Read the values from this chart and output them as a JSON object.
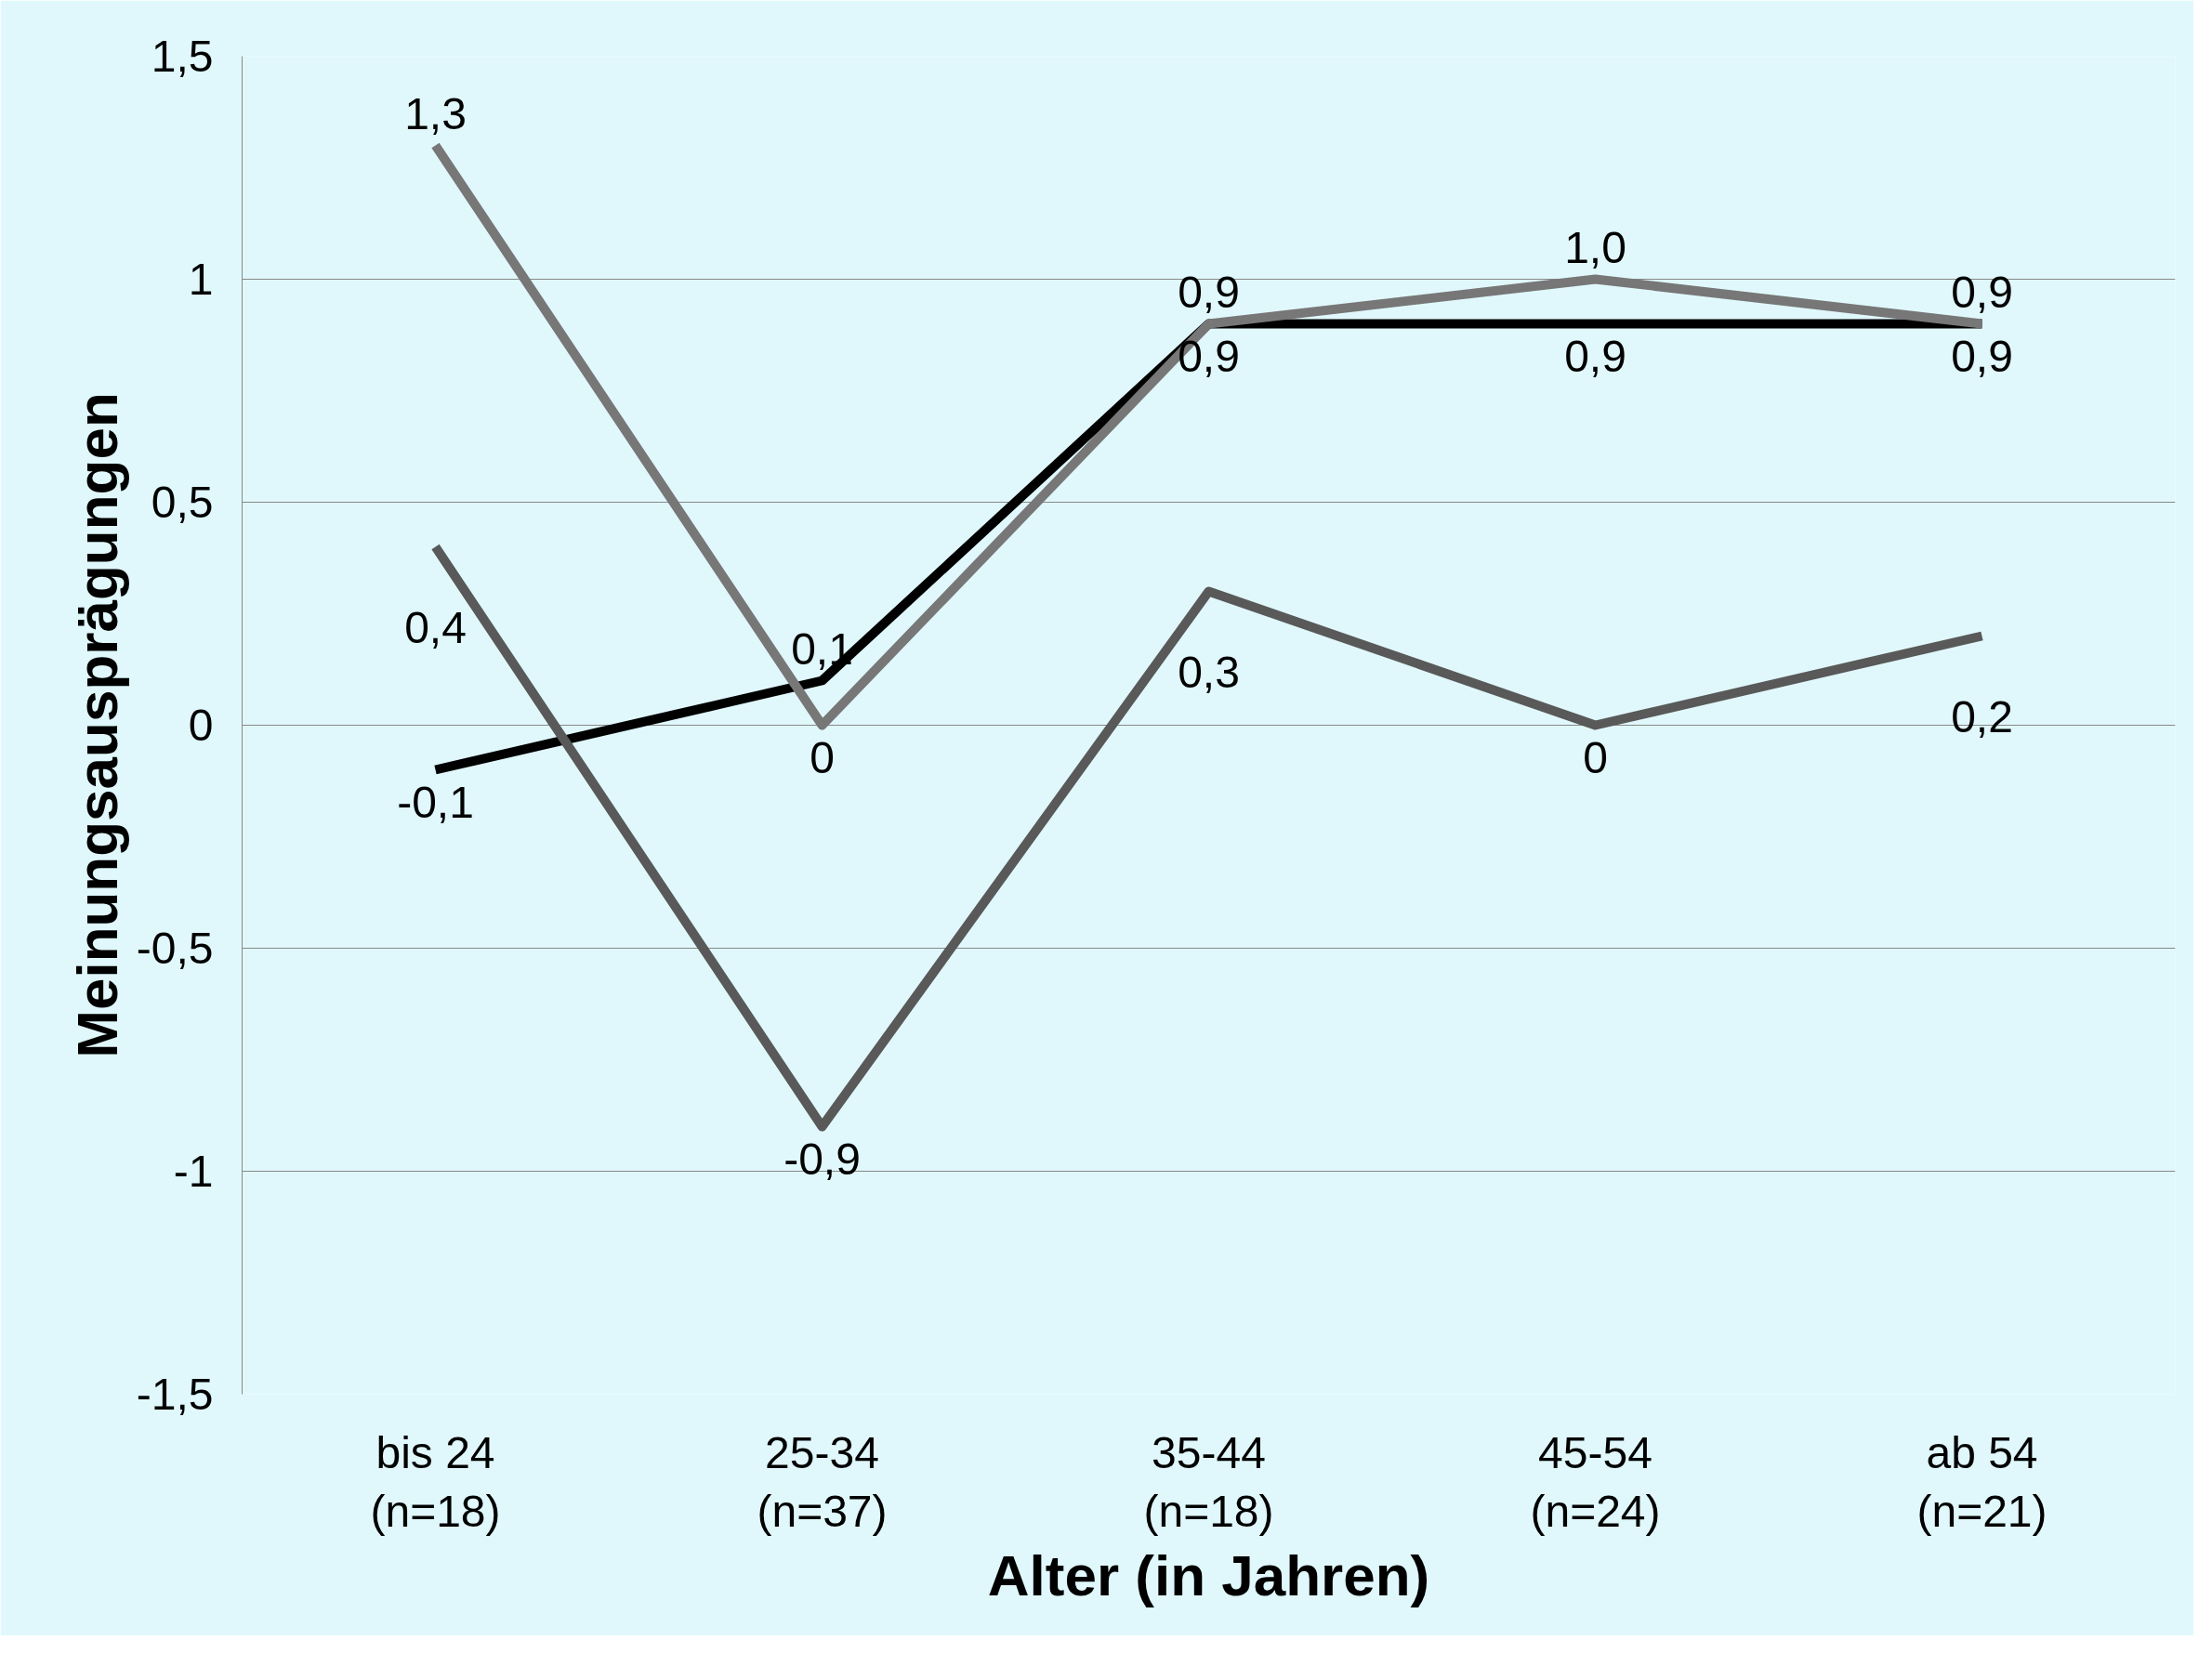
{
  "chart_data": {
    "type": "line",
    "xlabel": "Alter (in Jahren)",
    "ylabel": "Meinungsausprägungen",
    "categories": [
      "bis 24\n(n=18)",
      "25-34\n(n=37)",
      "35-44\n(n=18)",
      "45-54\n(n=24)",
      "ab 54\n(n=21)"
    ],
    "series": [
      {
        "color": "#000000",
        "values": [
          -0.1,
          0.1,
          0.9,
          0.9,
          0.9
        ],
        "value_labels": [
          "-0,1",
          "0,1",
          "0,9",
          "0,9",
          "0,9"
        ]
      },
      {
        "color": "#777777",
        "values": [
          1.3,
          0,
          0.9,
          1.0,
          0.9
        ],
        "value_labels": [
          "1,3",
          "0",
          "0,9",
          "1,0",
          "0,9"
        ]
      },
      {
        "color": "#595959",
        "values": [
          0.4,
          -0.9,
          0.3,
          0,
          0.2
        ],
        "value_labels": [
          "0,4",
          "-0,9",
          "0,3",
          "0",
          "0,2"
        ]
      }
    ],
    "ylim": [
      -1.5,
      1.5
    ],
    "yticks": [
      {
        "value": -1.5,
        "label": "-1,5"
      },
      -1,
      {
        "value": -0.5,
        "label": "-0,5"
      },
      0,
      {
        "value": 0.5,
        "label": "0,5"
      },
      1,
      {
        "value": 1.5,
        "label": "1,5"
      }
    ],
    "grid": "y",
    "marker": "none",
    "line_style": "solid"
  }
}
